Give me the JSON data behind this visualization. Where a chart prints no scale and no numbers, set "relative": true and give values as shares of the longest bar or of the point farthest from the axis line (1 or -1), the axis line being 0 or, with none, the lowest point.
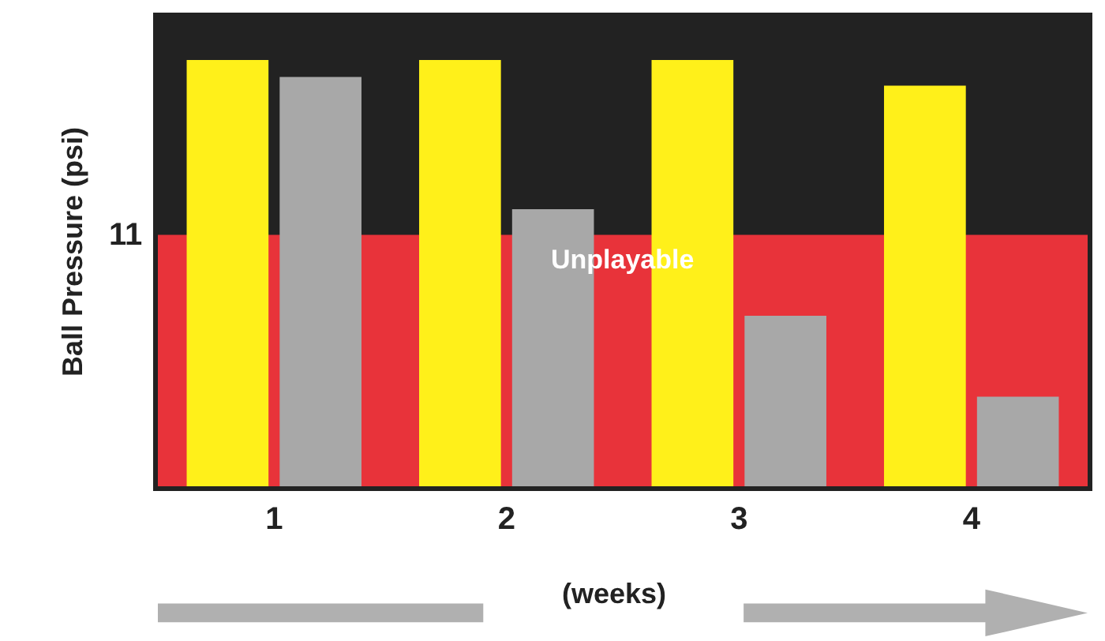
{
  "chart_data": {
    "type": "bar",
    "relative": true,
    "xlabel": "(weeks)",
    "ylabel": "Ball Pressure (psi)",
    "categories": [
      "1",
      "2",
      "3",
      "4"
    ],
    "series": [
      {
        "color": "#fff01a",
        "values": [
          1,
          1,
          1,
          0.94
        ]
      },
      {
        "color": "#a8a8a8",
        "values": [
          0.96,
          0.65,
          0.4,
          0.21
        ]
      }
    ],
    "bands": [
      {
        "axis": "y",
        "from": 0,
        "to": 0.59,
        "label": "Unplayable",
        "color": "#e8333a"
      }
    ],
    "annotations": [
      "11"
    ],
    "grid": false
  }
}
